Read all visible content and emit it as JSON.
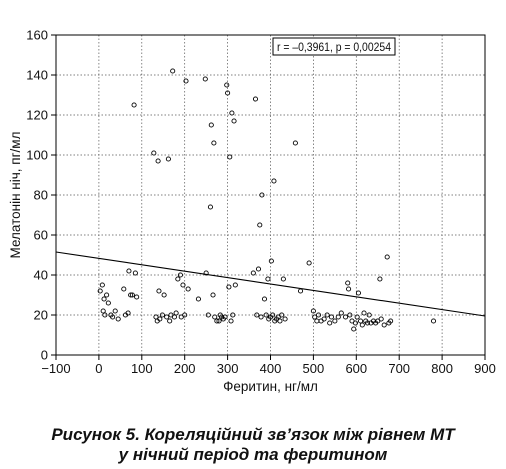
{
  "chart_data": {
    "type": "scatter",
    "xlabel": "Феритин, нг/мл",
    "ylabel": "Мелатонін ніч, пг/мл",
    "xlim": [
      -100,
      900
    ],
    "ylim": [
      0,
      160
    ],
    "xticks": [
      -100,
      0,
      100,
      200,
      300,
      400,
      500,
      600,
      700,
      800,
      900
    ],
    "yticks": [
      0,
      20,
      40,
      60,
      80,
      100,
      120,
      140,
      160
    ],
    "grid": "dashed",
    "annotation": "r = –0,3961, p = 0,00254",
    "regression_line": {
      "x": [
        -100,
        900
      ],
      "y": [
        51.5,
        19.5
      ]
    },
    "points": [
      {
        "x": 3,
        "y": 32
      },
      {
        "x": 8,
        "y": 35
      },
      {
        "x": 10,
        "y": 22
      },
      {
        "x": 14,
        "y": 20
      },
      {
        "x": 12,
        "y": 28
      },
      {
        "x": 18,
        "y": 30
      },
      {
        "x": 22,
        "y": 26
      },
      {
        "x": 28,
        "y": 20
      },
      {
        "x": 32,
        "y": 19
      },
      {
        "x": 38,
        "y": 22
      },
      {
        "x": 45,
        "y": 18
      },
      {
        "x": 58,
        "y": 33
      },
      {
        "x": 62,
        "y": 20
      },
      {
        "x": 68,
        "y": 21
      },
      {
        "x": 70,
        "y": 42
      },
      {
        "x": 74,
        "y": 30
      },
      {
        "x": 78,
        "y": 30
      },
      {
        "x": 82,
        "y": 125
      },
      {
        "x": 85,
        "y": 41
      },
      {
        "x": 88,
        "y": 29
      },
      {
        "x": 128,
        "y": 101
      },
      {
        "x": 133,
        "y": 19
      },
      {
        "x": 136,
        "y": 17
      },
      {
        "x": 138,
        "y": 97
      },
      {
        "x": 140,
        "y": 32
      },
      {
        "x": 142,
        "y": 18
      },
      {
        "x": 148,
        "y": 20
      },
      {
        "x": 152,
        "y": 30
      },
      {
        "x": 158,
        "y": 19
      },
      {
        "x": 162,
        "y": 98
      },
      {
        "x": 165,
        "y": 17
      },
      {
        "x": 168,
        "y": 20
      },
      {
        "x": 172,
        "y": 142
      },
      {
        "x": 176,
        "y": 19
      },
      {
        "x": 180,
        "y": 21
      },
      {
        "x": 184,
        "y": 38
      },
      {
        "x": 190,
        "y": 40
      },
      {
        "x": 192,
        "y": 19
      },
      {
        "x": 196,
        "y": 35
      },
      {
        "x": 200,
        "y": 20
      },
      {
        "x": 203,
        "y": 137
      },
      {
        "x": 208,
        "y": 33
      },
      {
        "x": 232,
        "y": 28
      },
      {
        "x": 248,
        "y": 138
      },
      {
        "x": 250,
        "y": 41
      },
      {
        "x": 255,
        "y": 20
      },
      {
        "x": 260,
        "y": 74
      },
      {
        "x": 262,
        "y": 115
      },
      {
        "x": 266,
        "y": 30
      },
      {
        "x": 268,
        "y": 106
      },
      {
        "x": 270,
        "y": 19
      },
      {
        "x": 275,
        "y": 17
      },
      {
        "x": 280,
        "y": 17
      },
      {
        "x": 283,
        "y": 20
      },
      {
        "x": 286,
        "y": 19
      },
      {
        "x": 290,
        "y": 18
      },
      {
        "x": 294,
        "y": 19
      },
      {
        "x": 298,
        "y": 135
      },
      {
        "x": 300,
        "y": 131
      },
      {
        "x": 303,
        "y": 34
      },
      {
        "x": 305,
        "y": 99
      },
      {
        "x": 308,
        "y": 17
      },
      {
        "x": 310,
        "y": 121
      },
      {
        "x": 312,
        "y": 20
      },
      {
        "x": 315,
        "y": 117
      },
      {
        "x": 318,
        "y": 35
      },
      {
        "x": 360,
        "y": 41
      },
      {
        "x": 365,
        "y": 128
      },
      {
        "x": 368,
        "y": 20
      },
      {
        "x": 372,
        "y": 43
      },
      {
        "x": 375,
        "y": 65
      },
      {
        "x": 378,
        "y": 19
      },
      {
        "x": 380,
        "y": 80
      },
      {
        "x": 386,
        "y": 28
      },
      {
        "x": 390,
        "y": 20
      },
      {
        "x": 394,
        "y": 38
      },
      {
        "x": 396,
        "y": 18
      },
      {
        "x": 400,
        "y": 19
      },
      {
        "x": 402,
        "y": 47
      },
      {
        "x": 405,
        "y": 20
      },
      {
        "x": 408,
        "y": 87
      },
      {
        "x": 410,
        "y": 17
      },
      {
        "x": 414,
        "y": 18
      },
      {
        "x": 418,
        "y": 19
      },
      {
        "x": 422,
        "y": 17
      },
      {
        "x": 426,
        "y": 20
      },
      {
        "x": 430,
        "y": 38
      },
      {
        "x": 434,
        "y": 18
      },
      {
        "x": 458,
        "y": 106
      },
      {
        "x": 470,
        "y": 32
      },
      {
        "x": 490,
        "y": 46
      },
      {
        "x": 500,
        "y": 22
      },
      {
        "x": 503,
        "y": 19
      },
      {
        "x": 508,
        "y": 17
      },
      {
        "x": 512,
        "y": 20
      },
      {
        "x": 518,
        "y": 17
      },
      {
        "x": 525,
        "y": 18
      },
      {
        "x": 532,
        "y": 20
      },
      {
        "x": 538,
        "y": 16
      },
      {
        "x": 542,
        "y": 19
      },
      {
        "x": 550,
        "y": 17
      },
      {
        "x": 558,
        "y": 19
      },
      {
        "x": 565,
        "y": 21
      },
      {
        "x": 575,
        "y": 19
      },
      {
        "x": 580,
        "y": 36
      },
      {
        "x": 582,
        "y": 33
      },
      {
        "x": 585,
        "y": 20
      },
      {
        "x": 590,
        "y": 17
      },
      {
        "x": 594,
        "y": 13
      },
      {
        "x": 598,
        "y": 16
      },
      {
        "x": 602,
        "y": 19
      },
      {
        "x": 605,
        "y": 31
      },
      {
        "x": 610,
        "y": 17
      },
      {
        "x": 614,
        "y": 15
      },
      {
        "x": 618,
        "y": 21
      },
      {
        "x": 622,
        "y": 17
      },
      {
        "x": 626,
        "y": 16
      },
      {
        "x": 630,
        "y": 20
      },
      {
        "x": 634,
        "y": 16
      },
      {
        "x": 640,
        "y": 17
      },
      {
        "x": 645,
        "y": 16
      },
      {
        "x": 650,
        "y": 17
      },
      {
        "x": 655,
        "y": 38
      },
      {
        "x": 658,
        "y": 18
      },
      {
        "x": 665,
        "y": 15
      },
      {
        "x": 672,
        "y": 49
      },
      {
        "x": 676,
        "y": 16
      },
      {
        "x": 680,
        "y": 17
      },
      {
        "x": 780,
        "y": 17
      }
    ]
  },
  "caption": {
    "line1": "Рисунок 5. Кореляційний зв’язок між рівнем МТ",
    "line2": "у нічний період та феритином"
  },
  "colors": {
    "axis": "#000000",
    "grid": "#555555",
    "marker": "#000000",
    "line": "#000000",
    "background": "#ffffff"
  }
}
